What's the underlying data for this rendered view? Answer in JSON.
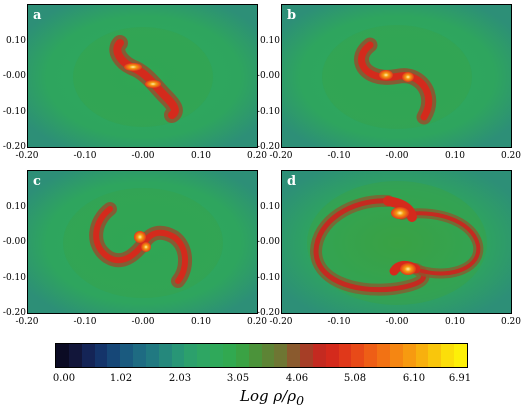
{
  "panels": [
    {
      "label": "a"
    },
    {
      "label": "b"
    },
    {
      "label": "c"
    },
    {
      "label": "d"
    }
  ],
  "axes": {
    "y_ticks": [
      "0.10",
      "-0.00",
      "-0.10",
      "-0.20"
    ],
    "x_ticks": [
      "-0.20",
      "-0.10",
      "-0.00",
      "0.10",
      "0.20"
    ]
  },
  "colorbar": {
    "tick_labels": [
      "0.00",
      "1.02",
      "2.03",
      "3.05",
      "4.06",
      "5.08",
      "6.10",
      "6.91"
    ],
    "title_main": "Log ρ/ρ",
    "title_sub": "0",
    "colors": [
      "#0b0b24",
      "#12163a",
      "#142456",
      "#14346a",
      "#164777",
      "#1a5a7f",
      "#1e6b82",
      "#217981",
      "#25887c",
      "#289676",
      "#2ca06c",
      "#2ea663",
      "#2fa95a",
      "#31a950",
      "#3aa244",
      "#4b933a",
      "#5d8435",
      "#6e7633",
      "#8a5a2e",
      "#a63e26",
      "#c42a20",
      "#d42a1c",
      "#e0381a",
      "#e84a18",
      "#ee5e16",
      "#f27214",
      "#f58612",
      "#f79a10",
      "#f8b00e",
      "#f9c60c",
      "#fbde0a",
      "#fdf008"
    ]
  }
}
